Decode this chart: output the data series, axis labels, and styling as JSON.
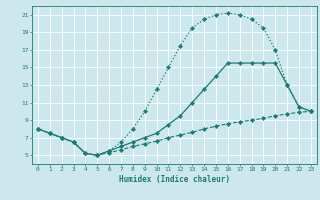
{
  "xlabel": "Humidex (Indice chaleur)",
  "xlim": [
    -0.5,
    23.5
  ],
  "ylim": [
    4,
    22
  ],
  "xticks": [
    0,
    1,
    2,
    3,
    4,
    5,
    6,
    7,
    8,
    9,
    10,
    11,
    12,
    13,
    14,
    15,
    16,
    17,
    18,
    19,
    20,
    21,
    22,
    23
  ],
  "yticks": [
    5,
    7,
    9,
    11,
    13,
    15,
    17,
    19,
    21
  ],
  "bg_color": "#cde8ec",
  "line_color": "#1c7a72",
  "grid_color": "#ffffff",
  "curve1_x": [
    0,
    1,
    2,
    3,
    4,
    5,
    6,
    7,
    8,
    9,
    10,
    11,
    12,
    13,
    14,
    15,
    16,
    17,
    18,
    19,
    20,
    21,
    22,
    23
  ],
  "curve1_y": [
    8.0,
    7.5,
    7.0,
    6.5,
    5.2,
    5.0,
    5.5,
    6.5,
    8.0,
    10.0,
    12.5,
    15.0,
    17.5,
    19.5,
    20.5,
    21.0,
    21.2,
    21.0,
    20.5,
    19.5,
    17.0,
    13.0,
    10.5,
    10.0
  ],
  "curve2_x": [
    0,
    1,
    2,
    3,
    4,
    5,
    6,
    7,
    8,
    9,
    10,
    11,
    12,
    13,
    14,
    15,
    16,
    17,
    18,
    19,
    20,
    21,
    22,
    23
  ],
  "curve2_y": [
    8.0,
    7.5,
    7.0,
    6.5,
    5.2,
    5.0,
    5.5,
    6.0,
    6.5,
    7.0,
    7.5,
    8.5,
    9.5,
    11.0,
    12.5,
    14.0,
    15.5,
    15.5,
    15.5,
    15.5,
    15.5,
    13.0,
    10.5,
    10.0
  ],
  "curve3_x": [
    0,
    1,
    2,
    3,
    4,
    5,
    6,
    7,
    8,
    9,
    10,
    11,
    12,
    13,
    14,
    15,
    16,
    17,
    18,
    19,
    20,
    21,
    22,
    23
  ],
  "curve3_y": [
    8.0,
    7.5,
    7.0,
    6.5,
    5.2,
    5.0,
    5.3,
    5.6,
    6.0,
    6.3,
    6.6,
    7.0,
    7.3,
    7.6,
    8.0,
    8.3,
    8.6,
    8.8,
    9.0,
    9.2,
    9.5,
    9.7,
    9.9,
    10.0
  ]
}
